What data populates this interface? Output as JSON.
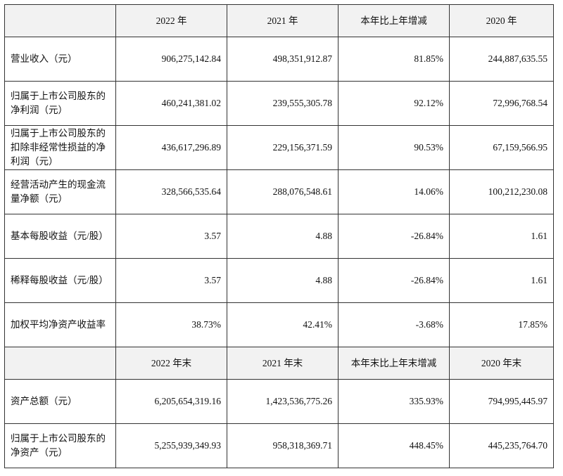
{
  "header1": [
    "2022 年",
    "2021 年",
    "本年比上年增减",
    "2020 年"
  ],
  "rows1": [
    {
      "label": "营业收入（元）",
      "values": [
        "906,275,142.84",
        "498,351,912.87",
        "81.85%",
        "244,887,635.55"
      ]
    },
    {
      "label": "归属于上市公司股东的净利润（元）",
      "values": [
        "460,241,381.02",
        "239,555,305.78",
        "92.12%",
        "72,996,768.54"
      ]
    },
    {
      "label": "归属于上市公司股东的扣除非经常性损益的净利润（元）",
      "values": [
        "436,617,296.89",
        "229,156,371.59",
        "90.53%",
        "67,159,566.95"
      ]
    },
    {
      "label": "经营活动产生的现金流量净额（元）",
      "values": [
        "328,566,535.64",
        "288,076,548.61",
        "14.06%",
        "100,212,230.08"
      ]
    },
    {
      "label": "基本每股收益（元/股）",
      "values": [
        "3.57",
        "4.88",
        "-26.84%",
        "1.61"
      ]
    },
    {
      "label": "稀释每股收益（元/股）",
      "values": [
        "3.57",
        "4.88",
        "-26.84%",
        "1.61"
      ]
    },
    {
      "label": "加权平均净资产收益率",
      "values": [
        "38.73%",
        "42.41%",
        "-3.68%",
        "17.85%"
      ]
    }
  ],
  "header2": [
    "2022 年末",
    "2021 年末",
    "本年末比上年末增减",
    "2020 年末"
  ],
  "rows2": [
    {
      "label": "资产总额（元）",
      "values": [
        "6,205,654,319.16",
        "1,423,536,775.26",
        "335.93%",
        "794,995,445.97"
      ]
    },
    {
      "label": "归属于上市公司股东的净资产（元）",
      "values": [
        "5,255,939,349.93",
        "958,318,369.71",
        "448.45%",
        "445,235,764.70"
      ]
    }
  ]
}
